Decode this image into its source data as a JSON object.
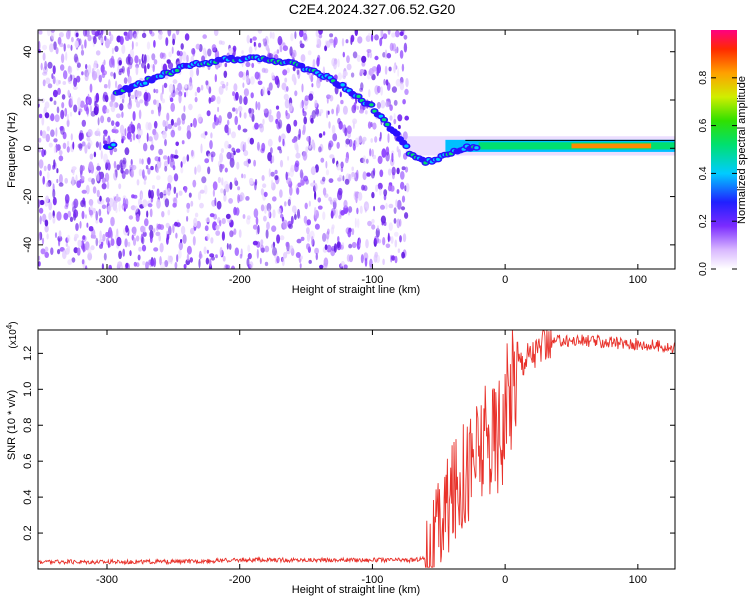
{
  "title": "C2E4.2024.327.06.52.G20",
  "chart_data": [
    {
      "type": "heatmap",
      "xlabel": "Height of straight line (km)",
      "ylabel": "Frequency (Hz)",
      "xlim": [
        -352,
        128
      ],
      "ylim": [
        -50,
        49
      ],
      "xticks": [
        -300,
        -200,
        -100,
        0,
        100
      ],
      "yticks": [
        -40,
        -20,
        0,
        20,
        40
      ],
      "colorbar": {
        "label": "Normalized spectral amplitude",
        "range": [
          0,
          1
        ],
        "ticks": [
          0.0,
          0.2,
          0.4,
          0.6,
          0.8
        ],
        "tick_labels": [
          "0.0",
          "0.2",
          "0.4",
          "0.6",
          "0.8"
        ]
      },
      "noise_region_x": [
        -352,
        -78
      ],
      "signal_curve": [
        {
          "x": -295,
          "y": 22
        },
        {
          "x": -270,
          "y": 28
        },
        {
          "x": -240,
          "y": 34
        },
        {
          "x": -210,
          "y": 37
        },
        {
          "x": -180,
          "y": 37
        },
        {
          "x": -160,
          "y": 35
        },
        {
          "x": -140,
          "y": 31
        },
        {
          "x": -120,
          "y": 25
        },
        {
          "x": -100,
          "y": 17
        },
        {
          "x": -90,
          "y": 11
        },
        {
          "x": -78,
          "y": 3
        },
        {
          "x": -70,
          "y": -3
        },
        {
          "x": -60,
          "y": -6
        },
        {
          "x": -50,
          "y": -4
        },
        {
          "x": -30,
          "y": 0
        },
        {
          "x": -10,
          "y": 1
        },
        {
          "x": 20,
          "y": 1
        },
        {
          "x": 60,
          "y": 1
        },
        {
          "x": 100,
          "y": 1
        },
        {
          "x": 128,
          "y": 1
        }
      ]
    },
    {
      "type": "line",
      "xlabel": "Height of straight line (km)",
      "ylabel": "SNR (10 * v/v)",
      "multiplier_label": "(x10",
      "multiplier_exponent": "4",
      "multiplier_suffix": ")",
      "xlim": [
        -352,
        128
      ],
      "ylim": [
        0,
        1.33
      ],
      "xticks": [
        -300,
        -200,
        -100,
        0,
        100
      ],
      "yticks": [
        0.2,
        0.4,
        0.6,
        0.8,
        1.0,
        1.2
      ],
      "ytick_labels": [
        "0.2",
        "0.4",
        "0.6",
        "0.8",
        "1.0",
        "1.2"
      ],
      "color": "#e8312a",
      "series": [
        {
          "x": [
            -352,
            -300,
            -250,
            -200,
            -150,
            -100,
            -70,
            -60,
            -55,
            -50,
            -45,
            -40,
            -35,
            -30,
            -25,
            -20,
            -15,
            -10,
            -5,
            0,
            5,
            10,
            20,
            30,
            40,
            50,
            60,
            80,
            100,
            120,
            128
          ],
          "values": [
            0.04,
            0.04,
            0.04,
            0.05,
            0.05,
            0.05,
            0.05,
            0.06,
            0.1,
            0.2,
            0.32,
            0.4,
            0.48,
            0.55,
            0.6,
            0.65,
            0.68,
            0.72,
            0.78,
            0.85,
            1.05,
            1.15,
            1.2,
            1.24,
            1.27,
            1.27,
            1.27,
            1.26,
            1.25,
            1.24,
            1.22
          ]
        }
      ]
    }
  ]
}
